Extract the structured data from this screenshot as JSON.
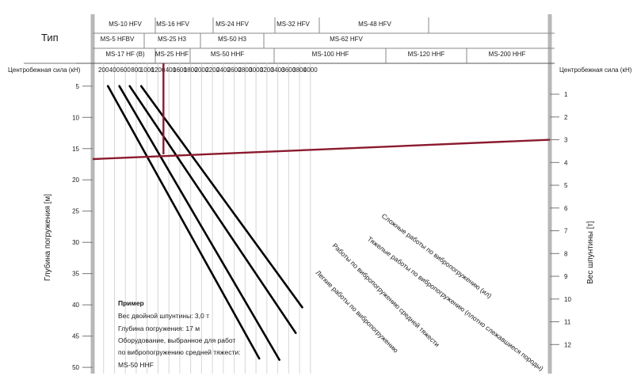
{
  "header": {
    "type_label": "Тип",
    "row1": [
      "MS-10 HFV",
      "MS-16 HFV",
      "MS-24 HFV",
      "MS-32 HFV",
      "MS-48 HFV"
    ],
    "row2": [
      "MS-5 HFBV",
      "MS-25 H3",
      "MS-50 H3",
      "MS-62 HFV"
    ],
    "row3": [
      "MS-17 HF (B)",
      "MS-25 HHF",
      "MS-50 HHF",
      "MS-100 HHF",
      "MS-120 HHF",
      "MS-200 HHF"
    ]
  },
  "force_label_left": "Центробежная сила (кН)",
  "force_label_right": "Центробежная сила (кН)",
  "example": {
    "title": "Пример",
    "lines": [
      "Вес двойной шпунтины: 3,0 т",
      "Глубина погружения: 17 м",
      "Оборудование, выбранное для работ",
      "по вибропогружению средней тяжести:",
      "MS-50 HHF"
    ]
  },
  "colors": {
    "example_line": "#8b1a2e",
    "lines": "#000000",
    "grid": "#b8b8b8"
  },
  "chart_data": {
    "type": "line",
    "x_label": "Центробежная сила (кН)",
    "x_ticks": [
      200,
      400,
      600,
      800,
      1000,
      1200,
      1400,
      1600,
      1800,
      2000,
      2200,
      2400,
      2600,
      2800,
      3000,
      3200,
      3400,
      3600,
      3800,
      4000
    ],
    "y_left_label": "Глубина погружения [м]",
    "y_left_ticks": [
      5,
      10,
      15,
      20,
      25,
      30,
      35,
      40,
      45,
      50
    ],
    "y_left_range": [
      3,
      51
    ],
    "y_right_label": "Вес шпунтины [т]",
    "y_right_ticks": [
      1,
      2,
      3,
      4,
      5,
      6,
      7,
      8,
      9,
      10,
      11,
      12
    ],
    "series": [
      {
        "name": "Сложные работы по вибропогружению (ил)",
        "points": [
          [
            890,
            5
          ],
          [
            3850,
            40.4
          ]
        ]
      },
      {
        "name": "Тяжелые работы по вибропогружению (плотно слежавшиеся породы)",
        "points": [
          [
            680,
            5
          ],
          [
            3730,
            44.5
          ]
        ]
      },
      {
        "name": "Работы по вибропогружению средней тяжести",
        "points": [
          [
            490,
            5
          ],
          [
            3430,
            48.8
          ]
        ]
      },
      {
        "name": "Легкие работы по вибропогружению",
        "points": [
          [
            280,
            5
          ],
          [
            3060,
            48.6
          ]
        ]
      }
    ],
    "example": {
      "weight_t": 3.0,
      "depth_m": 17,
      "force_kN": 1300
    }
  }
}
